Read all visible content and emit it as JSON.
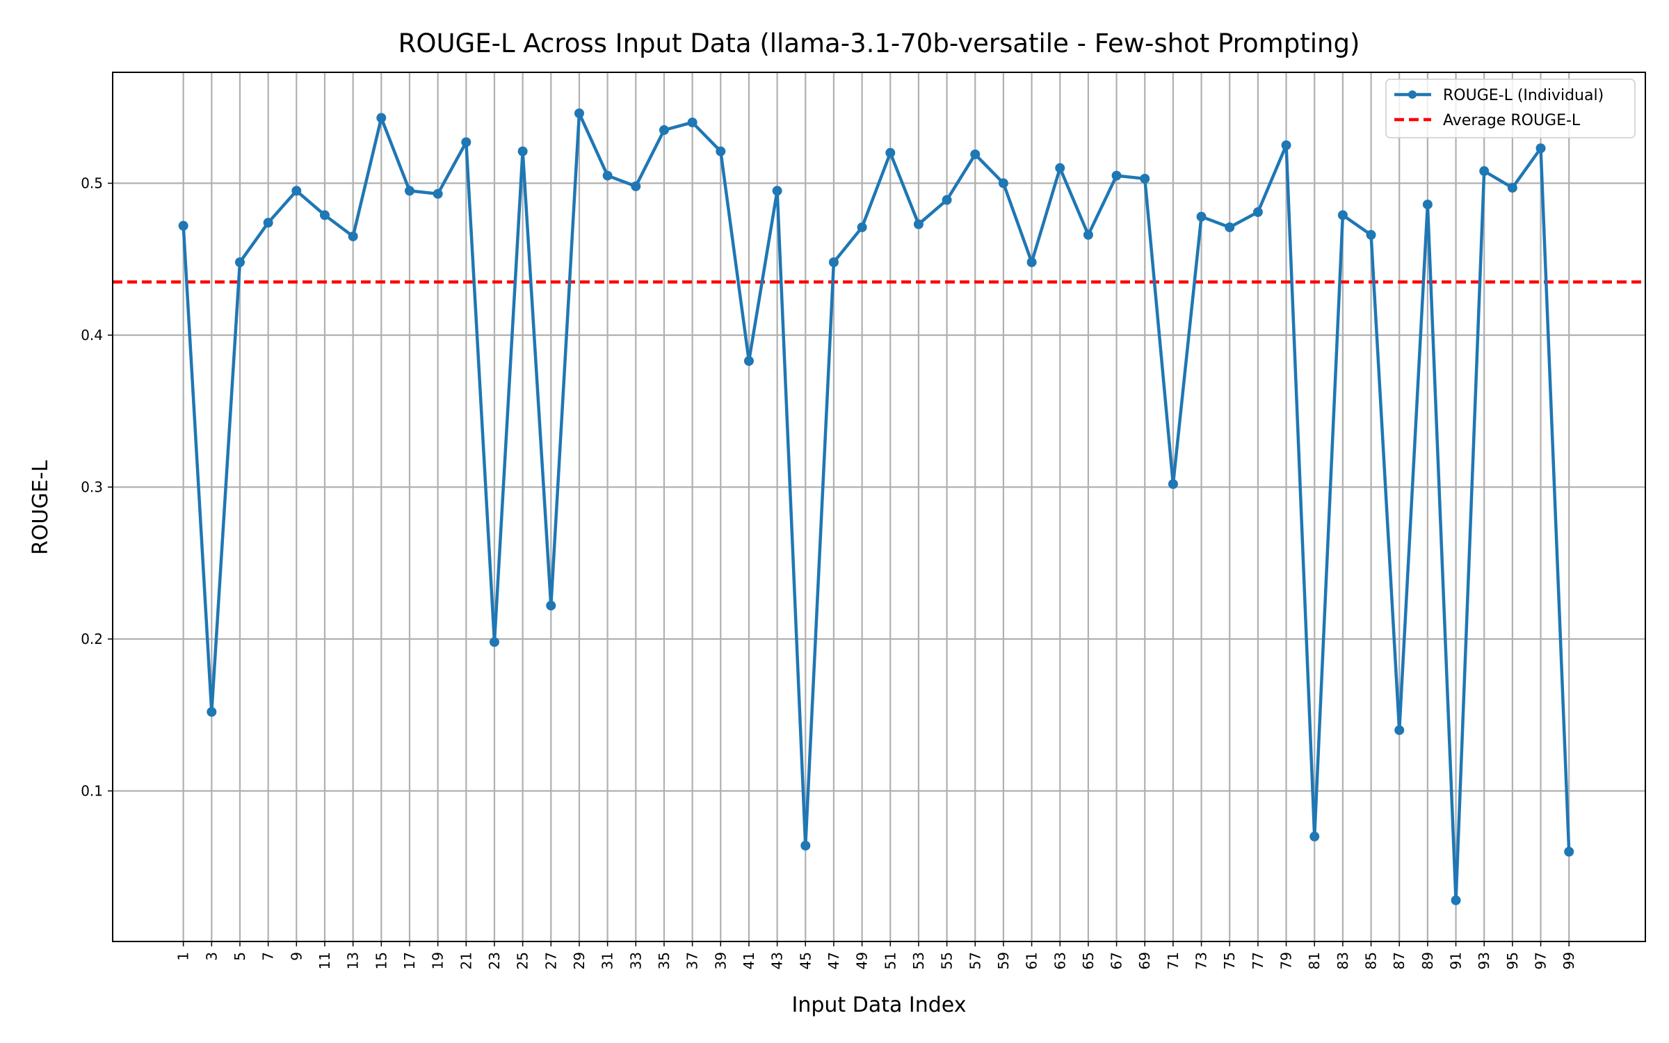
{
  "chart_data": {
    "type": "line",
    "title": "ROUGE-L Across Input Data (llama-3.1-70b-versatile - Few-shot Prompting)",
    "xlabel": "Input Data Index",
    "ylabel": "ROUGE-L",
    "x": [
      1,
      3,
      5,
      7,
      9,
      11,
      13,
      15,
      17,
      19,
      21,
      23,
      25,
      27,
      29,
      31,
      33,
      35,
      37,
      39,
      41,
      43,
      45,
      47,
      49,
      51,
      53,
      55,
      57,
      59,
      61,
      63,
      65,
      67,
      69,
      71,
      73,
      75,
      77,
      79,
      81,
      83,
      85,
      87,
      89,
      91,
      93,
      95,
      97,
      99
    ],
    "xticks": [
      "1",
      "3",
      "5",
      "7",
      "9",
      "11",
      "13",
      "15",
      "17",
      "19",
      "21",
      "23",
      "25",
      "27",
      "29",
      "31",
      "33",
      "35",
      "37",
      "39",
      "41",
      "43",
      "45",
      "47",
      "49",
      "51",
      "53",
      "55",
      "57",
      "59",
      "61",
      "63",
      "65",
      "67",
      "69",
      "71",
      "73",
      "75",
      "77",
      "79",
      "81",
      "83",
      "85",
      "87",
      "89",
      "91",
      "93",
      "95",
      "97",
      "99"
    ],
    "yticks": [
      "0.1",
      "0.2",
      "0.3",
      "0.4",
      "0.5"
    ],
    "ytick_values": [
      0.1,
      0.2,
      0.3,
      0.4,
      0.5
    ],
    "xlim": [
      -4.0,
      104.4
    ],
    "ylim": [
      0.0009,
      0.573
    ],
    "grid": true,
    "legend_placement": "top-right",
    "series": [
      {
        "name": "ROUGE-L (Individual)",
        "color": "#1f77b4",
        "style": "solid-line-with-dots",
        "values": [
          0.472,
          0.152,
          0.448,
          0.474,
          0.495,
          0.479,
          0.465,
          0.543,
          0.495,
          0.493,
          0.527,
          0.198,
          0.521,
          0.222,
          0.546,
          0.505,
          0.498,
          0.535,
          0.54,
          0.521,
          0.383,
          0.495,
          0.064,
          0.448,
          0.471,
          0.52,
          0.473,
          0.489,
          0.519,
          0.5,
          0.448,
          0.51,
          0.466,
          0.505,
          0.503,
          0.302,
          0.478,
          0.471,
          0.481,
          0.525,
          0.07,
          0.479,
          0.466,
          0.14,
          0.486,
          0.028,
          0.508,
          0.497,
          0.523,
          0.06
        ]
      },
      {
        "name": "Average ROUGE-L",
        "color": "#ff0000",
        "style": "dashed",
        "value": 0.435
      }
    ]
  }
}
